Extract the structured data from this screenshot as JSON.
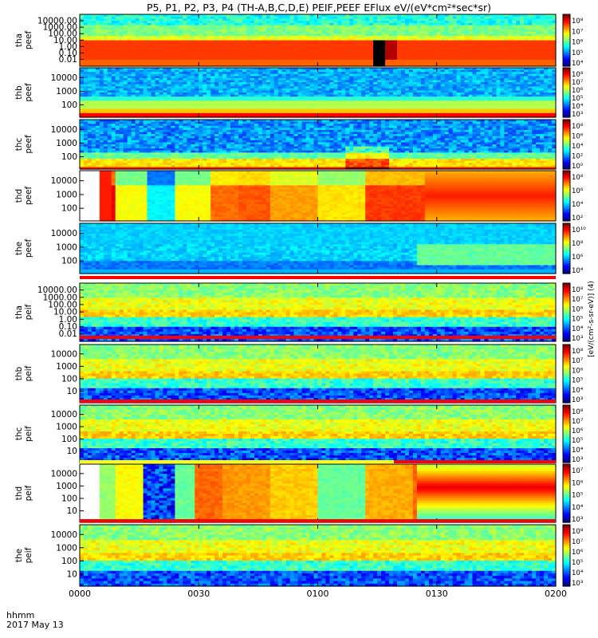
{
  "title": "P5, P1, P2, P3, P4 (TH-A,B,C,D,E) PEIF,PEEF EFlux eV/(eV*cm²*sec*sr)",
  "colorbar_unit_label": "[eV/(cm²-s-sr-eV)] (4)",
  "footer": {
    "left_top": "hhmm",
    "left_bottom": "2017 May 13"
  },
  "colors": {
    "background": "#ffffff",
    "flag_red": "#ff0000",
    "flag_yellow": "#ffff00",
    "fill_black": "#000000",
    "fill_white": "#ffffff"
  },
  "chart_data": [
    {
      "type": "heatmap",
      "id": "tha_peef",
      "ylabel": "tha\npeef",
      "log_y": true,
      "ylim": [
        0.01,
        20000
      ],
      "yticks": [
        "10000.00",
        "1000.00",
        "100.00",
        "10.00",
        "1.00",
        "0.10",
        "0.01"
      ],
      "colorbar_ticks": [
        "10⁸",
        "10⁷",
        "10⁶",
        "10⁵",
        "10⁴"
      ],
      "style": "banded_orange"
    },
    {
      "type": "heatmap",
      "id": "thb_peef",
      "ylabel": "thb\npeef",
      "log_y": true,
      "ylim": [
        20,
        20000
      ],
      "yticks": [
        "10000",
        "1000",
        "100"
      ],
      "colorbar_ticks": [
        "10⁸",
        "10⁷",
        "10⁶",
        "10⁵",
        "10⁴",
        "10³"
      ],
      "style": "striped_blue"
    },
    {
      "type": "heatmap",
      "id": "thc_peef",
      "ylabel": "thc\npeef",
      "log_y": true,
      "ylim": [
        20,
        20000
      ],
      "yticks": [
        "10000",
        "1000",
        "100"
      ],
      "colorbar_ticks": [
        "10⁸",
        "10⁶",
        "10⁴",
        "10²",
        "10⁰"
      ],
      "style": "striped_blue_red_base"
    },
    {
      "type": "heatmap",
      "id": "thd_peef",
      "ylabel": "thd\npeef",
      "log_y": true,
      "ylim": [
        20,
        20000
      ],
      "yticks": [
        "10000",
        "1000",
        "100"
      ],
      "colorbar_ticks": [
        "10⁸",
        "10⁶",
        "10⁴",
        "10²"
      ],
      "style": "blocky_yellow"
    },
    {
      "type": "heatmap",
      "id": "the_peef",
      "ylabel": "the\npeef",
      "log_y": true,
      "ylim": [
        20,
        20000
      ],
      "yticks": [
        "10000",
        "1000",
        "100"
      ],
      "colorbar_ticks": [
        "10¹⁰",
        "10⁸",
        "10⁶",
        "10⁴"
      ],
      "style": "blue_green_tail"
    },
    {
      "type": "heatmap",
      "id": "tha_peif",
      "ylabel": "tha\npeif",
      "log_y": true,
      "ylim": [
        0.01,
        20000
      ],
      "yticks": [
        "10000.00",
        "1000.00",
        "100.00",
        "10.00",
        "1.00",
        "0.10",
        "0.01"
      ],
      "colorbar_ticks": [
        "10⁸",
        "10⁷",
        "10⁶",
        "10⁵",
        "10⁴",
        "10³"
      ],
      "style": "ion_green_blue"
    },
    {
      "type": "heatmap",
      "id": "thb_peif",
      "ylabel": "thb\npeif",
      "log_y": true,
      "ylim": [
        5,
        20000
      ],
      "yticks": [
        "10000",
        "1000",
        "100",
        "10"
      ],
      "colorbar_ticks": [
        "10⁸",
        "10⁷",
        "10⁶",
        "10⁵",
        "10⁴",
        "10³"
      ],
      "style": "ion_green_blue"
    },
    {
      "type": "heatmap",
      "id": "thc_peif",
      "ylabel": "thc\npeif",
      "log_y": true,
      "ylim": [
        5,
        20000
      ],
      "yticks": [
        "10000",
        "1000",
        "100",
        "10"
      ],
      "colorbar_ticks": [
        "10⁸",
        "10⁷",
        "10⁶",
        "10⁵",
        "10⁴",
        "10³"
      ],
      "style": "ion_green_blue"
    },
    {
      "type": "heatmap",
      "id": "thd_peif",
      "ylabel": "thd\npeif",
      "log_y": true,
      "ylim": [
        5,
        20000
      ],
      "yticks": [
        "10000",
        "1000",
        "100",
        "10"
      ],
      "colorbar_ticks": [
        "10⁷",
        "10⁶",
        "10⁵",
        "10⁴",
        "10³"
      ],
      "style": "blocky_ion"
    },
    {
      "type": "heatmap",
      "id": "the_peif",
      "ylabel": "the\npeif",
      "log_y": true,
      "ylim": [
        5,
        20000
      ],
      "yticks": [
        "10000",
        "1000",
        "100",
        "10"
      ],
      "colorbar_ticks": [
        "10⁸",
        "10⁷",
        "10⁶",
        "10⁵",
        "10⁴",
        "10³"
      ],
      "style": "ion_green_blue"
    }
  ],
  "x_axis": {
    "ticks": [
      "0000",
      "0030",
      "0100",
      "0130",
      "0200"
    ],
    "xlim": [
      "0000",
      "0200"
    ]
  }
}
